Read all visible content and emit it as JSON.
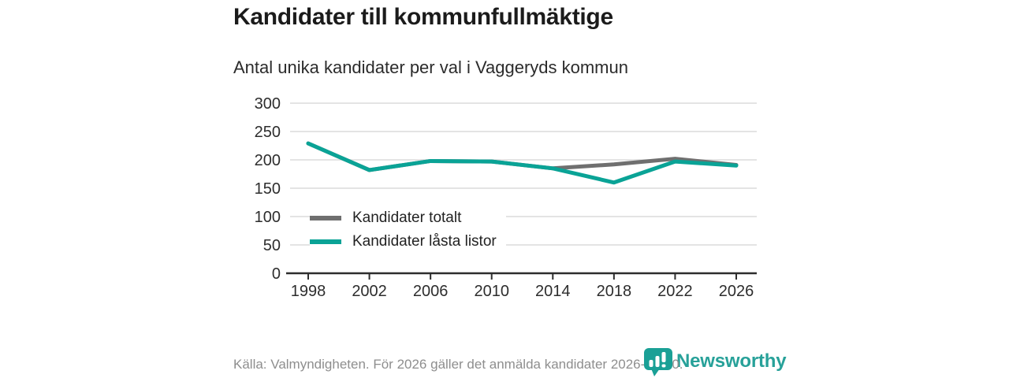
{
  "header": {
    "title": "Kandidater till kommunfullmäktige",
    "subtitle": "Antal unika kandidater per val i Vaggeryds kommun"
  },
  "chart_data": {
    "type": "line",
    "title": "Kandidater till kommunfullmäktige",
    "subtitle": "Antal unika kandidater per val i Vaggeryds kommun",
    "x": [
      1998,
      2002,
      2006,
      2010,
      2014,
      2018,
      2022,
      2026
    ],
    "series": [
      {
        "name": "Kandidater totalt",
        "color": "#6f6f6f",
        "values": [
          229,
          182,
          198,
          197,
          185,
          192,
          202,
          191
        ]
      },
      {
        "name": "Kandidater låsta listor",
        "color": "#0aa396",
        "values": [
          229,
          182,
          198,
          197,
          185,
          160,
          197,
          190
        ]
      }
    ],
    "xlabel": "",
    "ylabel": "",
    "ylim": [
      0,
      300
    ],
    "yticks": [
      0,
      50,
      100,
      150,
      200,
      250,
      300
    ],
    "grid": true,
    "legend_position": "inside-left"
  },
  "footer": {
    "source": "Källa: Valmyndigheten. För 2026 gäller det anmälda kandidater 2026-04-10."
  },
  "branding": {
    "name": "Newsworthy",
    "color": "#27a199"
  },
  "colors": {
    "background": "#ffffff",
    "grid": "#dcdcdc",
    "axis": "#2d2d2d",
    "tick_label": "#2d2d2d",
    "title_text": "#1b1b1b",
    "muted_text": "#8e8e8e"
  }
}
